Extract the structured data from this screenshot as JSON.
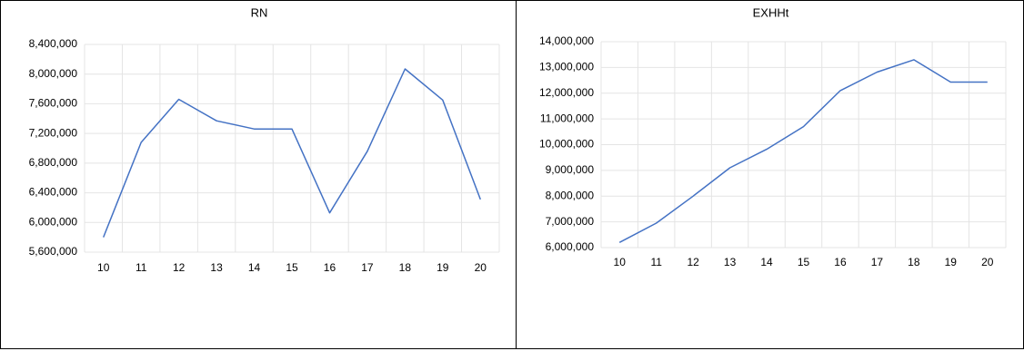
{
  "chart_data": [
    {
      "type": "line",
      "title": "RN",
      "xlabel": "",
      "ylabel": "",
      "categories": [
        "10",
        "11",
        "12",
        "13",
        "14",
        "15",
        "16",
        "17",
        "18",
        "19",
        "20"
      ],
      "series": [
        {
          "values": [
            5800000,
            7080000,
            7660000,
            7370000,
            7260000,
            7260000,
            6130000,
            6960000,
            8070000,
            7650000,
            6310000
          ]
        }
      ],
      "ylim": [
        5600000,
        8400000
      ],
      "yticks": [
        "5,600,000",
        "6,000,000",
        "6,400,000",
        "6,800,000",
        "7,200,000",
        "7,600,000",
        "8,000,000",
        "8,400,000"
      ],
      "grid": true,
      "legend": "none",
      "color": "#4472c4"
    },
    {
      "type": "line",
      "title": "EXHHt",
      "xlabel": "",
      "ylabel": "",
      "categories": [
        "10",
        "11",
        "12",
        "13",
        "14",
        "15",
        "16",
        "17",
        "18",
        "19",
        "20"
      ],
      "series": [
        {
          "values": [
            6200000,
            6950000,
            8000000,
            9100000,
            9820000,
            10700000,
            12100000,
            12820000,
            13300000,
            12430000,
            12430000
          ]
        }
      ],
      "ylim": [
        6000000,
        14000000
      ],
      "yticks": [
        "6,000,000",
        "7,000,000",
        "8,000,000",
        "9,000,000",
        "10,000,000",
        "11,000,000",
        "12,000,000",
        "13,000,000",
        "14,000,000"
      ],
      "grid": true,
      "legend": "none",
      "color": "#4472c4"
    }
  ]
}
